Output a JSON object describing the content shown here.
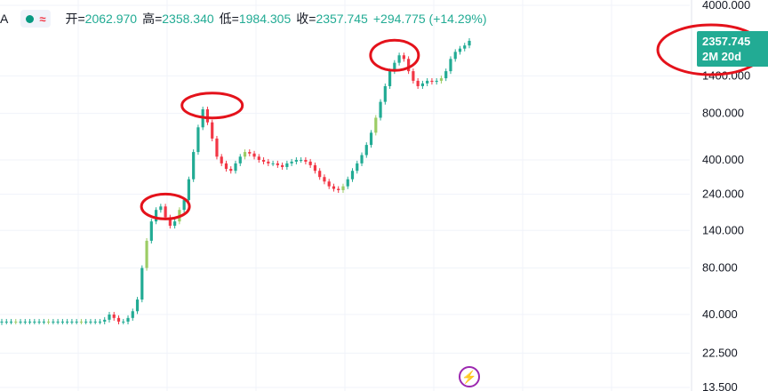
{
  "legend": {
    "symbol": "A",
    "open_label": "开=",
    "open_value": "2062.970",
    "high_label": "高=",
    "high_value": "2358.340",
    "low_label": "低=",
    "low_value": "1984.305",
    "close_label": "收=",
    "close_value": "2357.745",
    "change": "+294.775 (+14.29%)"
  },
  "price_tag": {
    "price": "2357.745",
    "countdown": "2M 20d"
  },
  "colors": {
    "up": "#22ab94",
    "down": "#f23645",
    "accent_up": "#9ccc65",
    "annotation": "#e4121b"
  },
  "chart_data": {
    "type": "line",
    "scale": "log",
    "ylim": [
      13.5,
      4000
    ],
    "y_ticks": [
      {
        "value": 4000,
        "label": "4000.000"
      },
      {
        "value": 1400,
        "label": "1400.000"
      },
      {
        "value": 800,
        "label": "800.000"
      },
      {
        "value": 400,
        "label": "400.000"
      },
      {
        "value": 240,
        "label": "240.000"
      },
      {
        "value": 140,
        "label": "140.000"
      },
      {
        "value": 80,
        "label": "80.000"
      },
      {
        "value": 40,
        "label": "40.000"
      },
      {
        "value": 22.5,
        "label": "22.500"
      },
      {
        "value": 13.5,
        "label": "13.500"
      }
    ],
    "grid": true,
    "series": [
      {
        "values": [
          36,
          36,
          36,
          36,
          36,
          36,
          36,
          36,
          36,
          36,
          36,
          36,
          36,
          36,
          36,
          36,
          36,
          36,
          36,
          36,
          36,
          36,
          37,
          40,
          38,
          36,
          36,
          38,
          42,
          50,
          80,
          120,
          160,
          190,
          200,
          170,
          150,
          160,
          190,
          220,
          300,
          450,
          650,
          850,
          700,
          550,
          420,
          380,
          350,
          340,
          380,
          420,
          450,
          440,
          420,
          400,
          390,
          380,
          380,
          370,
          360,
          380,
          390,
          400,
          400,
          390,
          370,
          340,
          310,
          290,
          270,
          260,
          255,
          270,
          300,
          340,
          380,
          430,
          500,
          600,
          750,
          950,
          1200,
          1500,
          1700,
          1900,
          1800,
          1500,
          1300,
          1200,
          1250,
          1300,
          1280,
          1300,
          1350,
          1500,
          1800,
          2000,
          2100,
          2200,
          2357.745
        ]
      }
    ],
    "annotations": [
      {
        "type": "circle",
        "x_index": 35,
        "y": 200
      },
      {
        "type": "circle",
        "x_index": 45,
        "y": 900
      },
      {
        "type": "circle",
        "x_index": 84,
        "y": 1900
      },
      {
        "type": "circle",
        "target": "price_tag"
      }
    ]
  }
}
